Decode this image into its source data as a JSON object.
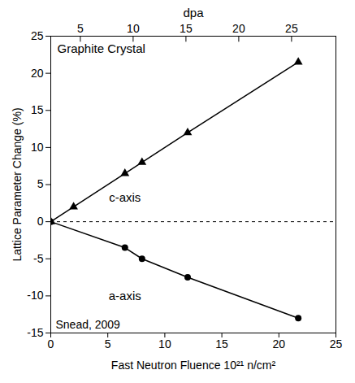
{
  "chart_data": {
    "type": "line",
    "title": "Graphite Crystal",
    "x_label": "Fast Neutron Fluence 10²¹ n/cm²",
    "y_label": "Lattice Parameter Change (%)",
    "x2_label": "dpa",
    "annotations": [
      "Snead, 2009"
    ],
    "xlim": [
      0,
      25
    ],
    "xticks": [
      0,
      5,
      10,
      15,
      20,
      25
    ],
    "x2lim": [
      2.2,
      29.2
    ],
    "x2ticks": [
      5,
      10,
      15,
      20,
      25
    ],
    "ylim": [
      -15,
      25
    ],
    "yticks": [
      -15,
      -10,
      -5,
      0,
      5,
      10,
      15,
      20,
      25
    ],
    "hline": 0,
    "series": [
      {
        "name": "c-axis",
        "color": "#000000",
        "marker": "triangle",
        "line_style": "solid",
        "x": [
          0,
          2,
          6.5,
          8,
          12,
          21.7
        ],
        "values": [
          0,
          2,
          6.5,
          8,
          12,
          21.5
        ]
      },
      {
        "name": "a-axis",
        "color": "#000000",
        "marker": "circle",
        "line_style": "solid",
        "x": [
          0,
          6.5,
          8,
          12,
          21.7
        ],
        "values": [
          0,
          -3.5,
          -5,
          -7.5,
          -13
        ]
      }
    ]
  }
}
